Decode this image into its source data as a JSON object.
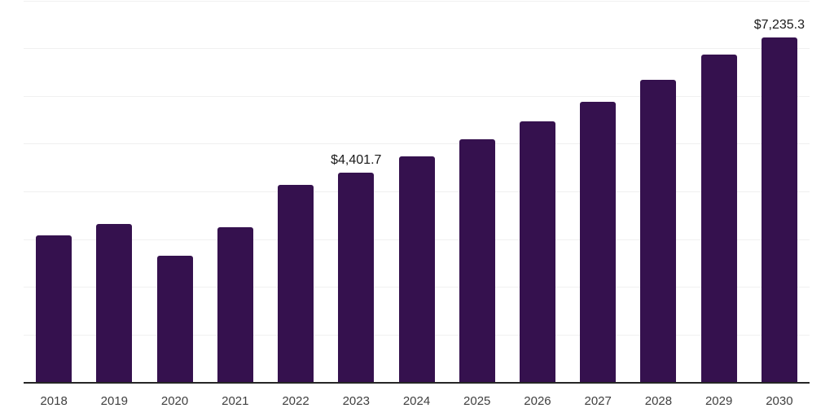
{
  "chart_data": {
    "type": "bar",
    "title": "",
    "xlabel": "",
    "ylabel": "",
    "categories": [
      "2018",
      "2019",
      "2020",
      "2021",
      "2022",
      "2023",
      "2024",
      "2025",
      "2026",
      "2027",
      "2028",
      "2029",
      "2030"
    ],
    "values": [
      3094,
      3327,
      2667,
      3253,
      4137,
      4401.7,
      4746,
      5094,
      5470,
      5891,
      6347,
      6872,
      7235.3
    ],
    "data_labels": {
      "2023": "$4,401.7",
      "2030": "$7,235.3"
    },
    "ylim": [
      0,
      8000
    ],
    "gridline_step": 1000,
    "grid": true,
    "legend": "none",
    "colors": {
      "bar": "#35114E",
      "gridline": "#f0f0f0",
      "axis_line": "#262626",
      "tick_label": "#404040",
      "value_label": "#1a1a1a",
      "background": "#ffffff"
    }
  }
}
